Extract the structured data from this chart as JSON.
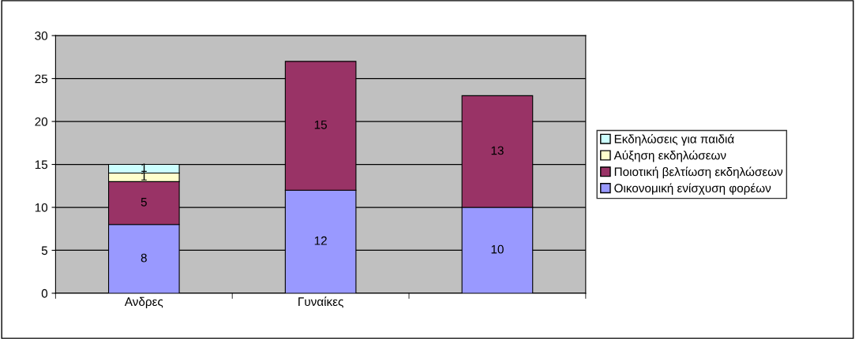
{
  "chart_data": {
    "type": "bar",
    "stacked": true,
    "categories": [
      "Ανδρες",
      "Γυναίκες",
      null
    ],
    "series": [
      {
        "name": "Οικονομική ενίσχυση φορέων",
        "color": "#9999ff",
        "values": [
          8,
          12,
          10
        ]
      },
      {
        "name": "Ποιοτική βελτίωση εκδηλώσεων",
        "color": "#993366",
        "values": [
          5,
          15,
          13
        ]
      },
      {
        "name": "Αύξηση εκδηλώσεων",
        "color": "#ffffcc",
        "values": [
          1,
          null,
          null
        ]
      },
      {
        "name": "Εκδηλώσεις για παιδιά",
        "color": "#ccffff",
        "values": [
          1,
          null,
          null
        ]
      }
    ],
    "ylim": [
      0,
      30
    ],
    "yticks": [
      0,
      5,
      10,
      15,
      20,
      25,
      30
    ],
    "grid": "y",
    "legend": "right",
    "data_labels": true
  }
}
